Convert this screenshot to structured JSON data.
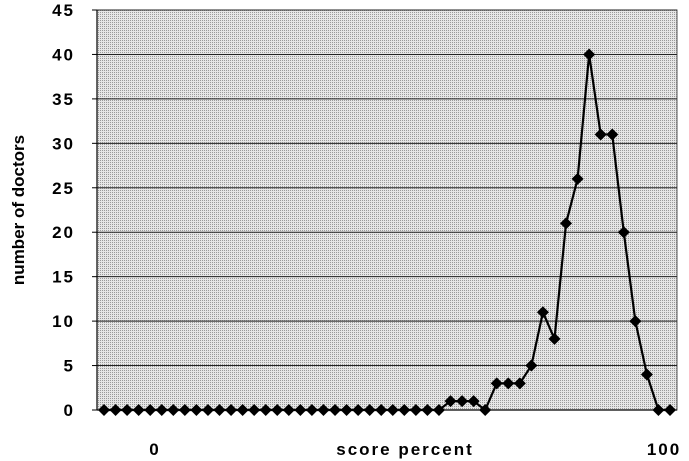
{
  "chart_data": {
    "type": "line",
    "xlabel": "score percent",
    "ylabel": "number of doctors",
    "x_tick_labels": [
      "0",
      "100"
    ],
    "ylim": [
      0,
      45
    ],
    "y_ticks": [
      0,
      5,
      10,
      15,
      20,
      25,
      30,
      35,
      40,
      45
    ],
    "grid": true,
    "marker": "diamond",
    "values": [
      0,
      0,
      0,
      0,
      0,
      0,
      0,
      0,
      0,
      0,
      0,
      0,
      0,
      0,
      0,
      0,
      0,
      0,
      0,
      0,
      0,
      0,
      0,
      0,
      0,
      0,
      0,
      0,
      0,
      0,
      1,
      1,
      1,
      0,
      3,
      3,
      3,
      5,
      11,
      8,
      21,
      26,
      40,
      31,
      31,
      20,
      10,
      4,
      0,
      0
    ]
  }
}
